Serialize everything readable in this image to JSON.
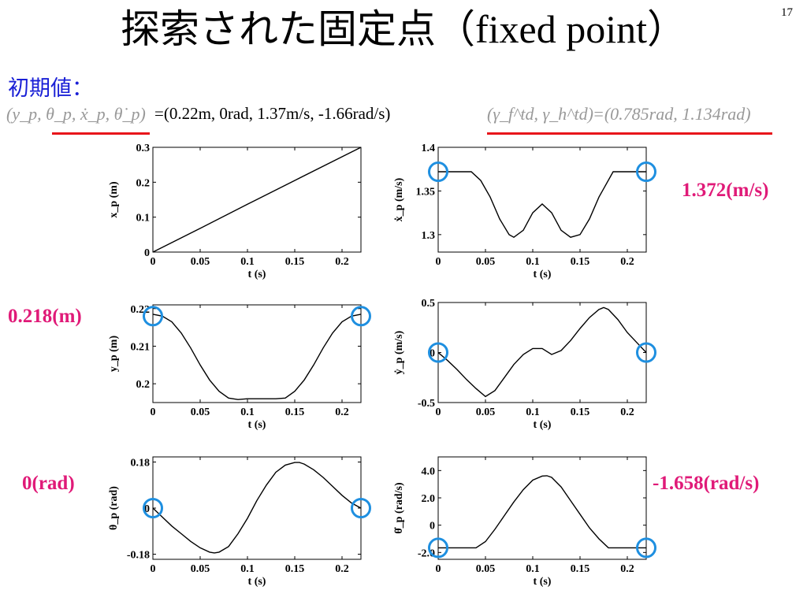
{
  "slide": {
    "title_jp": "探索された固定点",
    "title_latin": "（fixed point）",
    "page_number": "17",
    "initial_label": "初期値："
  },
  "formula": {
    "state_vars": "(y_p, θ_p, ẋ_p, θ̇_p)",
    "state_values": "=(0.22m, 0rad, 1.37m/s, -1.66rad/s)",
    "angles_vars": "(γ_f^td, γ_h^td)",
    "angles_values": "=(0.785rad, 1.134rad)"
  },
  "callouts": {
    "xdot": "1.372(m/s)",
    "y": "0.218(m)",
    "theta": "0(rad)",
    "thetadot": "-1.658(rad/s)"
  },
  "colors": {
    "title": "#000000",
    "initial_label": "#1a20d6",
    "callout_text": "#e01a78",
    "underline": "#e8151b",
    "marker_circle": "#1e8fe0",
    "curve": "#000000"
  },
  "chart_data": [
    {
      "id": "xp",
      "type": "line",
      "ylabel": "x_p (m)",
      "xlabel": "t (s)",
      "xlim": [
        0,
        0.22
      ],
      "ylim": [
        0,
        0.3
      ],
      "xticks": [
        "0",
        "0.05",
        "0.1",
        "0.15",
        "0.2"
      ],
      "yticks": [
        "0",
        "0.1",
        "0.2",
        "0.3"
      ],
      "x": [
        0,
        0.05,
        0.1,
        0.15,
        0.2,
        0.22
      ],
      "y": [
        0,
        0.068,
        0.137,
        0.205,
        0.273,
        0.3
      ],
      "markers": []
    },
    {
      "id": "xdot",
      "type": "line",
      "ylabel": "ẋ_p (m/s)",
      "xlabel": "t (s)",
      "xlim": [
        0,
        0.22
      ],
      "ylim": [
        1.28,
        1.4
      ],
      "xticks": [
        "0",
        "0.05",
        "0.1",
        "0.15",
        "0.2"
      ],
      "yticks": [
        "1.3",
        "1.35",
        "1.4"
      ],
      "x": [
        0,
        0.035,
        0.045,
        0.055,
        0.065,
        0.075,
        0.08,
        0.09,
        0.1,
        0.11,
        0.12,
        0.13,
        0.14,
        0.15,
        0.16,
        0.17,
        0.185,
        0.22
      ],
      "y": [
        1.372,
        1.372,
        1.362,
        1.343,
        1.318,
        1.3,
        1.297,
        1.305,
        1.325,
        1.335,
        1.325,
        1.305,
        1.297,
        1.3,
        1.318,
        1.343,
        1.372,
        1.372
      ],
      "markers": [
        [
          0.0,
          1.372
        ],
        [
          0.22,
          1.372
        ]
      ]
    },
    {
      "id": "yp",
      "type": "line",
      "ylabel": "y_p (m)",
      "xlabel": "t (s)",
      "xlim": [
        0,
        0.22
      ],
      "ylim": [
        0.195,
        0.221
      ],
      "xticks": [
        "0",
        "0.05",
        "0.1",
        "0.15",
        "0.2"
      ],
      "yticks": [
        "0.2",
        "0.21",
        "0.22"
      ],
      "x": [
        0,
        0.01,
        0.02,
        0.03,
        0.04,
        0.05,
        0.06,
        0.07,
        0.08,
        0.09,
        0.1,
        0.11,
        0.12,
        0.13,
        0.14,
        0.15,
        0.16,
        0.17,
        0.18,
        0.19,
        0.2,
        0.21,
        0.22
      ],
      "y": [
        0.2185,
        0.218,
        0.2165,
        0.2135,
        0.2095,
        0.205,
        0.201,
        0.198,
        0.1962,
        0.1958,
        0.196,
        0.196,
        0.196,
        0.196,
        0.1962,
        0.198,
        0.201,
        0.205,
        0.2095,
        0.2135,
        0.2165,
        0.218,
        0.2185
      ],
      "markers": [
        [
          0.0,
          0.218
        ],
        [
          0.22,
          0.218
        ]
      ]
    },
    {
      "id": "ydot",
      "type": "line",
      "ylabel": "ẏ_p (m/s)",
      "xlabel": "t (s)",
      "xlim": [
        0,
        0.22
      ],
      "ylim": [
        -0.5,
        0.5
      ],
      "xticks": [
        "0",
        "0.05",
        "0.1",
        "0.15",
        "0.2"
      ],
      "yticks": [
        "-0.5",
        "0",
        "0.5"
      ],
      "x": [
        0,
        0.01,
        0.02,
        0.03,
        0.04,
        0.05,
        0.06,
        0.07,
        0.08,
        0.09,
        0.1,
        0.11,
        0.12,
        0.13,
        0.14,
        0.15,
        0.16,
        0.17,
        0.175,
        0.18,
        0.19,
        0.2,
        0.21,
        0.22
      ],
      "y": [
        0.0,
        -0.08,
        -0.17,
        -0.27,
        -0.36,
        -0.44,
        -0.38,
        -0.25,
        -0.12,
        -0.02,
        0.04,
        0.04,
        -0.02,
        0.02,
        0.12,
        0.24,
        0.35,
        0.43,
        0.45,
        0.43,
        0.33,
        0.2,
        0.1,
        0.0
      ],
      "markers": [
        [
          0.0,
          0.0
        ],
        [
          0.22,
          0.0
        ]
      ]
    },
    {
      "id": "theta",
      "type": "line",
      "ylabel": "θ_p (rad)",
      "xlabel": "t (s)",
      "xlim": [
        0,
        0.22
      ],
      "ylim": [
        -0.2,
        0.2
      ],
      "xticks": [
        "0",
        "0.05",
        "0.1",
        "0.15",
        "0.2"
      ],
      "yticks": [
        "-0.18",
        "0",
        "0.18"
      ],
      "x": [
        0,
        0.01,
        0.02,
        0.03,
        0.04,
        0.05,
        0.06,
        0.065,
        0.07,
        0.08,
        0.09,
        0.1,
        0.11,
        0.12,
        0.13,
        0.14,
        0.15,
        0.155,
        0.16,
        0.17,
        0.18,
        0.19,
        0.2,
        0.21,
        0.22
      ],
      "y": [
        0.0,
        -0.035,
        -0.07,
        -0.1,
        -0.13,
        -0.155,
        -0.172,
        -0.175,
        -0.172,
        -0.15,
        -0.1,
        -0.04,
        0.03,
        0.09,
        0.14,
        0.168,
        0.178,
        0.178,
        0.172,
        0.15,
        0.12,
        0.085,
        0.05,
        0.02,
        0.0
      ],
      "markers": [
        [
          0.0,
          0.0
        ],
        [
          0.22,
          0.0
        ]
      ]
    },
    {
      "id": "thetadot",
      "type": "line",
      "ylabel": "θ̇_p (rad/s)",
      "xlabel": "t (s)",
      "xlim": [
        0,
        0.22
      ],
      "ylim": [
        -2.5,
        5
      ],
      "xticks": [
        "0",
        "0.05",
        "0.1",
        "0.15",
        "0.2"
      ],
      "yticks": [
        "-2.0",
        "0",
        "2.0",
        "4.0"
      ],
      "x": [
        0,
        0.04,
        0.05,
        0.06,
        0.07,
        0.08,
        0.09,
        0.1,
        0.11,
        0.115,
        0.12,
        0.13,
        0.14,
        0.15,
        0.16,
        0.17,
        0.18,
        0.22
      ],
      "y": [
        -1.658,
        -1.658,
        -1.2,
        -0.3,
        0.7,
        1.7,
        2.6,
        3.3,
        3.6,
        3.62,
        3.5,
        2.8,
        1.8,
        0.8,
        -0.2,
        -1.0,
        -1.658,
        -1.658
      ],
      "markers": [
        [
          0.0,
          -1.658
        ],
        [
          0.22,
          -1.658
        ]
      ]
    }
  ]
}
